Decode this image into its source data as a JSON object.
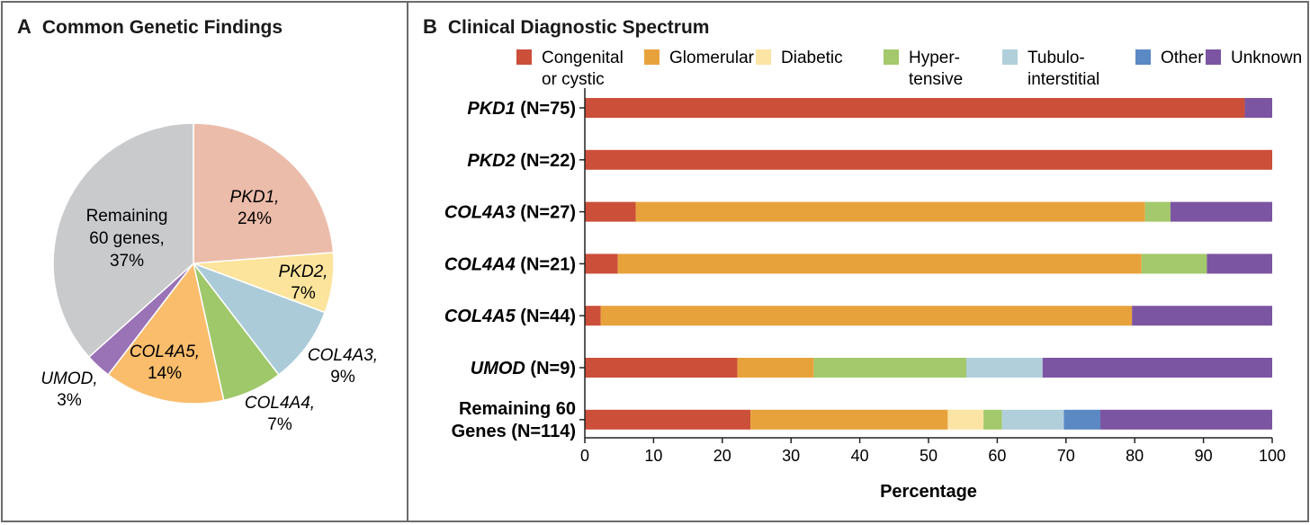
{
  "panel_a": {
    "letter": "A",
    "title": "Common Genetic Findings"
  },
  "panel_b": {
    "letter": "B",
    "title": "Clinical Diagnostic Spectrum",
    "xlabel": "Percentage"
  },
  "chart_data": [
    {
      "type": "pie",
      "title": "Common Genetic Findings",
      "slices": [
        {
          "label": "PKD1",
          "value": 24,
          "display": "24%",
          "italic": true,
          "color": "#ecbcaa"
        },
        {
          "label": "PKD2",
          "value": 7,
          "display": "7%",
          "italic": true,
          "color": "#fce49c"
        },
        {
          "label": "COL4A3",
          "value": 9,
          "display": "9%",
          "italic": true,
          "color": "#abcbd9"
        },
        {
          "label": "COL4A4",
          "value": 7,
          "display": "7%",
          "italic": true,
          "color": "#9fc86a"
        },
        {
          "label": "COL4A5",
          "value": 14,
          "display": "14%",
          "italic": true,
          "color": "#f9bd6c"
        },
        {
          "label": "UMOD",
          "value": 3,
          "display": "3%",
          "italic": true,
          "color": "#9a72b6"
        },
        {
          "label": "Remaining 60 genes",
          "value": 37,
          "display": "37%",
          "italic": false,
          "color": "#c9cacc"
        }
      ]
    },
    {
      "type": "bar",
      "orientation": "horizontal",
      "stacked": true,
      "title": "Clinical Diagnostic Spectrum",
      "xlabel": "Percentage",
      "xlim": [
        0,
        100
      ],
      "xticks": [
        0,
        10,
        20,
        30,
        40,
        50,
        60,
        70,
        80,
        90,
        100
      ],
      "legend_position": "top",
      "categories": [
        {
          "gene": "PKD1",
          "n": "(N=75)"
        },
        {
          "gene": "PKD2",
          "n": "(N=22)"
        },
        {
          "gene": "COL4A3",
          "n": "(N=27)"
        },
        {
          "gene": "COL4A4",
          "n": "(N=21)"
        },
        {
          "gene": "COL4A5",
          "n": "(N=44)"
        },
        {
          "gene": "UMOD",
          "n": "(N=9)"
        },
        {
          "gene": "Remaining 60",
          "n": "Genes (N=114)"
        }
      ],
      "series": [
        {
          "name": "Congenital or cystic",
          "legend_lines": [
            "Congenital",
            "or cystic"
          ],
          "color": "#cc4f3a",
          "values": [
            96.0,
            100,
            7.4,
            4.8,
            2.3,
            22.2,
            24.1
          ]
        },
        {
          "name": "Glomerular",
          "legend_lines": [
            "Glomerular"
          ],
          "color": "#e8a23c",
          "values": [
            0,
            0,
            74.1,
            76.2,
            77.3,
            11.1,
            28.7
          ]
        },
        {
          "name": "Diabetic",
          "legend_lines": [
            "Diabetic"
          ],
          "color": "#fbe4a4",
          "values": [
            0,
            0,
            0,
            0,
            0,
            0,
            5.2
          ]
        },
        {
          "name": "Hypertensive",
          "legend_lines": [
            "Hyper-",
            "tensive"
          ],
          "color": "#a3c96c",
          "values": [
            0,
            0,
            3.7,
            9.5,
            0,
            22.2,
            2.7
          ]
        },
        {
          "name": "Tubulointerstitial",
          "legend_lines": [
            "Tubulo-",
            "interstitial"
          ],
          "color": "#b1cfdb",
          "values": [
            0,
            0,
            0,
            0,
            0,
            11.1,
            9.0
          ]
        },
        {
          "name": "Other",
          "legend_lines": [
            "Other"
          ],
          "color": "#5b89c4",
          "values": [
            0,
            0,
            0,
            0,
            0,
            0,
            5.3
          ]
        },
        {
          "name": "Unknown",
          "legend_lines": [
            "Unknown"
          ],
          "color": "#7c55a2",
          "values": [
            4.0,
            0,
            14.8,
            9.5,
            20.4,
            33.4,
            25.0
          ]
        }
      ]
    }
  ]
}
